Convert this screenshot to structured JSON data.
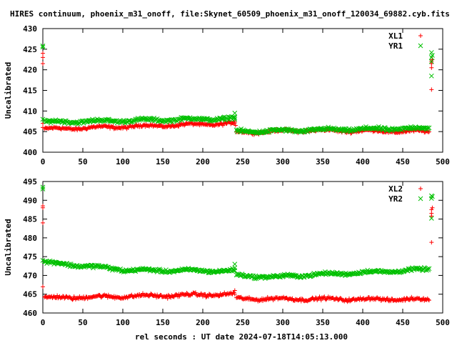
{
  "title": "HIRES continuum, phoenix_m31_onoff, file:Skynet_60509_phoenix_m31_onoff_120034_69882.cyb.fits",
  "xlabel": "rel seconds : UT date 2024-07-18T14:05:13.000",
  "colors": {
    "XL": "#ff0000",
    "YR": "#00c000"
  },
  "chart_data": [
    {
      "type": "scatter",
      "ylabel": "Uncalibrated",
      "xlim": [
        0,
        500
      ],
      "ylim": [
        400,
        430
      ],
      "xticks": [
        0,
        50,
        100,
        150,
        200,
        250,
        300,
        350,
        400,
        450,
        500
      ],
      "yticks": [
        400,
        405,
        410,
        415,
        420,
        425,
        430
      ],
      "grid": false,
      "legend": "top-right",
      "series": [
        {
          "name": "XL1",
          "marker": "plus",
          "segments": [
            {
              "x0": 2,
              "x1": 240,
              "y0": 405.6,
              "y1": 407.0,
              "noise": 0.5
            },
            {
              "x0": 242,
              "x1": 330,
              "y0": 404.8,
              "y1": 405.3,
              "noise": 0.5
            },
            {
              "x0": 330,
              "x1": 483,
              "y0": 405.3,
              "y1": 405.0,
              "noise": 0.5
            }
          ],
          "extra": [
            [
              0,
              424
            ],
            [
              0,
              423
            ],
            [
              0,
              421.5
            ],
            [
              0,
              407
            ],
            [
              0,
              406
            ],
            [
              240,
              407.5
            ],
            [
              241,
              406.5
            ],
            [
              486,
              422
            ],
            [
              486,
              421.5
            ],
            [
              486,
              420.5
            ],
            [
              486,
              415.2
            ],
            [
              487,
              422.5
            ]
          ]
        },
        {
          "name": "YR1",
          "marker": "cross",
          "segments": [
            {
              "x0": 2,
              "x1": 240,
              "y0": 407.3,
              "y1": 408.2,
              "noise": 0.55
            },
            {
              "x0": 242,
              "x1": 330,
              "y0": 405.0,
              "y1": 405.3,
              "noise": 0.55
            },
            {
              "x0": 330,
              "x1": 483,
              "y0": 405.4,
              "y1": 405.8,
              "noise": 0.55
            }
          ],
          "extra": [
            [
              0,
              425.8
            ],
            [
              0,
              425.5
            ],
            [
              0,
              408
            ],
            [
              240,
              409.5
            ],
            [
              240,
              408
            ],
            [
              486,
              424.2
            ],
            [
              486,
              423
            ],
            [
              486,
              418.5
            ],
            [
              487,
              423.5
            ],
            [
              486,
              422
            ]
          ]
        }
      ]
    },
    {
      "type": "scatter",
      "ylabel": "Uncalibrated",
      "xlim": [
        0,
        500
      ],
      "ylim": [
        460,
        495
      ],
      "xticks": [
        0,
        50,
        100,
        150,
        200,
        250,
        300,
        350,
        400,
        450,
        500
      ],
      "yticks": [
        460,
        465,
        470,
        475,
        480,
        485,
        490,
        495
      ],
      "grid": false,
      "legend": "top-right",
      "series": [
        {
          "name": "XL2",
          "marker": "plus",
          "segments": [
            {
              "x0": 2,
              "x1": 240,
              "y0": 464.0,
              "y1": 465.0,
              "noise": 0.65
            },
            {
              "x0": 242,
              "x1": 483,
              "y0": 463.8,
              "y1": 463.6,
              "noise": 0.6
            }
          ],
          "extra": [
            [
              0,
              488.5
            ],
            [
              0,
              488
            ],
            [
              0,
              484
            ],
            [
              0,
              467
            ],
            [
              240,
              466
            ],
            [
              486,
              487.5
            ],
            [
              486,
              486.5
            ],
            [
              486,
              485.8
            ],
            [
              486,
              478.8
            ],
            [
              487,
              488
            ]
          ]
        },
        {
          "name": "YR2",
          "marker": "cross",
          "segments": [
            {
              "x0": 2,
              "x1": 100,
              "y0": 473.5,
              "y1": 471.6,
              "noise": 0.6
            },
            {
              "x0": 100,
              "x1": 240,
              "y0": 471.4,
              "y1": 471.2,
              "noise": 0.55
            },
            {
              "x0": 242,
              "x1": 300,
              "y0": 470.0,
              "y1": 469.5,
              "noise": 0.55
            },
            {
              "x0": 300,
              "x1": 483,
              "y0": 469.8,
              "y1": 471.6,
              "noise": 0.55
            }
          ],
          "extra": [
            [
              0,
              493.5
            ],
            [
              0,
              493
            ],
            [
              0,
              474
            ],
            [
              240,
              473
            ],
            [
              240,
              472
            ],
            [
              486,
              491.2
            ],
            [
              486,
              490.5
            ],
            [
              486,
              485.2
            ],
            [
              487,
              491
            ]
          ]
        }
      ]
    }
  ]
}
